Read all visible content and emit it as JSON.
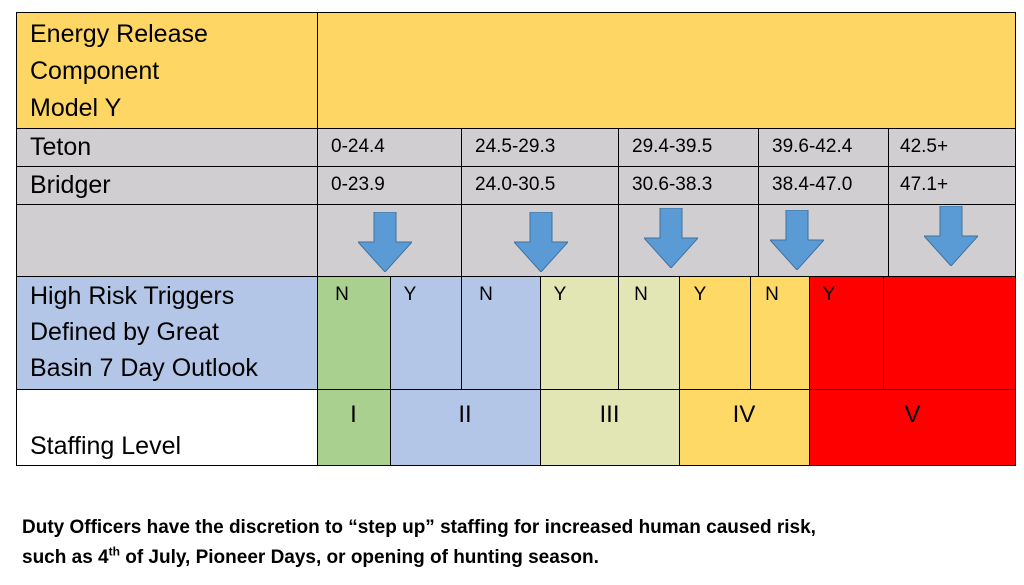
{
  "header": {
    "line1": "Energy Release",
    "line2": "Component",
    "line3": "Model Y"
  },
  "rows": {
    "teton": {
      "label": "Teton",
      "ranges": [
        "0-24.4",
        "24.5-29.3",
        "29.4-39.5",
        "39.6-42.4",
        "42.5+"
      ]
    },
    "bridger": {
      "label": "Bridger",
      "ranges": [
        "0-23.9",
        "24.0-30.5",
        "30.6-38.3",
        "38.4-47.0",
        "47.1+"
      ]
    }
  },
  "triggers": {
    "line1": "High Risk Triggers",
    "line2": "Defined by Great",
    "line3": "Basin 7 Day Outlook",
    "values": [
      "N",
      "Y",
      "N",
      "Y",
      "N",
      "Y",
      "N",
      "Y"
    ]
  },
  "staffing": {
    "label": "Staffing Level",
    "levels": [
      "I",
      "II",
      "III",
      "IV",
      "V"
    ]
  },
  "footnote": {
    "line1": "Duty Officers have the discretion to “step up” staffing for increased human caused risk,",
    "line2a": "such as 4",
    "line2sup": "th",
    "line2b": " of July, Pioneer Days, or opening of hunting season."
  },
  "colors": {
    "header_yellow": "#fdd663",
    "gray": "#d0ced0",
    "blue_label": "#b4c6e7",
    "green": "#a9d08e",
    "blue": "#b4c6e7",
    "pale": "#e2e6b5",
    "orange": "#ffd966",
    "red": "#ff0000",
    "arrow": "#5b9bd5"
  }
}
